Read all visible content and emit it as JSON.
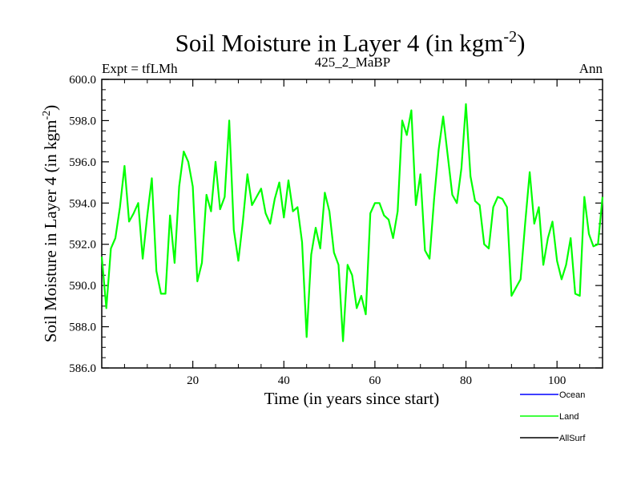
{
  "chart_data": {
    "type": "line",
    "title": "Soil Moisture in Layer 4 (in kgm",
    "title_sup": "-2",
    "title_close": ")",
    "subtitle_left": "Expt = tfLMh",
    "subtitle_center": "425_2_MaBP",
    "subtitle_right": "Ann",
    "xlabel": "Time (in years since start)",
    "ylabel": "Soil Moisture in Layer 4 (in kgm",
    "ylabel_sup": "-2",
    "ylabel_close": ")",
    "xlim": [
      0,
      110
    ],
    "ylim": [
      586.0,
      600.0
    ],
    "x_ticks": [
      20,
      40,
      60,
      80,
      100
    ],
    "x_tick_labels": [
      "20",
      "40",
      "60",
      "80",
      "100"
    ],
    "y_ticks": [
      586,
      588,
      590,
      592,
      594,
      596,
      598,
      600
    ],
    "y_tick_labels": [
      "586.0",
      "588.0",
      "590.0",
      "592.0",
      "594.0",
      "596.0",
      "598.0",
      "600.0"
    ],
    "legend": [
      {
        "name": "Ocean",
        "color": "#0000ff"
      },
      {
        "name": "Land",
        "color": "#00ff00"
      },
      {
        "name": "AllSurf",
        "color": "#000000"
      }
    ],
    "series": [
      {
        "name": "Land",
        "color": "#00ff00",
        "x": [
          0,
          1,
          2,
          3,
          4,
          5,
          6,
          7,
          8,
          9,
          10,
          11,
          12,
          13,
          14,
          15,
          16,
          17,
          18,
          19,
          20,
          21,
          22,
          23,
          24,
          25,
          26,
          27,
          28,
          29,
          30,
          31,
          32,
          33,
          34,
          35,
          36,
          37,
          38,
          39,
          40,
          41,
          42,
          43,
          44,
          45,
          46,
          47,
          48,
          49,
          50,
          51,
          52,
          53,
          54,
          55,
          56,
          57,
          58,
          59,
          60,
          61,
          62,
          63,
          64,
          65,
          66,
          67,
          68,
          69,
          70,
          71,
          72,
          73,
          74,
          75,
          76,
          77,
          78,
          79,
          80,
          81,
          82,
          83,
          84,
          85,
          86,
          87,
          88,
          89,
          90,
          91,
          92,
          93,
          94,
          95,
          96,
          97,
          98,
          99,
          100,
          101,
          102,
          103,
          104,
          105,
          106,
          107,
          108,
          109,
          110
        ],
        "values": [
          591.4,
          588.9,
          591.8,
          592.3,
          593.8,
          595.8,
          593.1,
          593.5,
          594.0,
          591.3,
          593.4,
          595.2,
          590.7,
          589.6,
          589.6,
          593.4,
          591.1,
          594.8,
          596.5,
          596.0,
          594.8,
          590.2,
          591.1,
          594.4,
          593.6,
          596.0,
          593.7,
          594.3,
          598.0,
          592.7,
          591.2,
          593.1,
          595.4,
          593.9,
          594.3,
          594.7,
          593.5,
          593.0,
          594.2,
          595.0,
          593.3,
          595.1,
          593.6,
          593.8,
          592.1,
          587.5,
          591.5,
          592.8,
          591.8,
          594.5,
          593.6,
          591.6,
          591.0,
          587.3,
          591.0,
          590.5,
          588.9,
          589.5,
          588.6,
          593.5,
          594.0,
          594.0,
          593.4,
          593.2,
          592.3,
          593.6,
          598.0,
          597.3,
          598.5,
          593.9,
          595.4,
          591.7,
          591.3,
          594.2,
          596.6,
          598.2,
          596.3,
          594.4,
          594.0,
          595.7,
          598.8,
          595.3,
          594.1,
          593.9,
          592.0,
          591.8,
          593.8,
          594.3,
          594.2,
          593.8,
          589.5,
          589.9,
          590.3,
          593.0,
          595.5,
          593.0,
          593.8,
          591.0,
          592.3,
          593.1,
          591.2,
          590.3,
          591.0,
          592.3,
          589.6,
          589.5,
          594.3,
          592.5,
          591.9,
          592.0,
          594.3
        ]
      }
    ]
  }
}
